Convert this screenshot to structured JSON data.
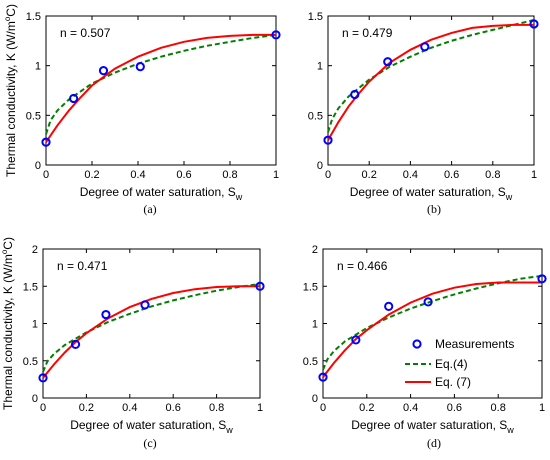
{
  "figure": {
    "ylabel_main": "Thermal conductivity, K (W/m",
    "ylabel_sup": "o",
    "ylabel_tail": "C)",
    "xlabel_main": "Degree of water saturation, S",
    "xlabel_sub": "w"
  },
  "legend": {
    "measurements": "Measurements",
    "eq4": "Eq.(4)",
    "eq7": "Eq. (7)"
  },
  "colors": {
    "measurements": "#0000ff",
    "eq4": "#008000",
    "eq7": "#ff0000"
  },
  "chart_data": [
    {
      "type": "line",
      "panel": "(a)",
      "annotation": "n = 0.507",
      "xlim": [
        0,
        1
      ],
      "ylim": [
        0,
        1.5
      ],
      "xticks": [
        0,
        0.2,
        0.4,
        0.6,
        0.8,
        1
      ],
      "yticks": [
        0,
        0.5,
        1,
        1.5
      ],
      "xtick_labels": [
        "0",
        "0.2",
        "0.4",
        "0.6",
        "0.8",
        "1"
      ],
      "ytick_labels": [
        "0",
        "0.5",
        "1",
        "1.5"
      ],
      "measurements": {
        "x": [
          0,
          0.12,
          0.25,
          0.41,
          1
        ],
        "y": [
          0.23,
          0.67,
          0.95,
          0.99,
          1.31
        ]
      },
      "eq4": {
        "x": [
          0,
          0.02,
          0.05,
          0.1,
          0.2,
          0.3,
          0.4,
          0.5,
          0.6,
          0.7,
          0.8,
          0.9,
          1
        ],
        "y": [
          0.31,
          0.45,
          0.55,
          0.66,
          0.82,
          0.93,
          1.02,
          1.09,
          1.15,
          1.2,
          1.24,
          1.28,
          1.31
        ]
      },
      "eq7": {
        "x": [
          0,
          0.05,
          0.1,
          0.15,
          0.2,
          0.3,
          0.4,
          0.5,
          0.6,
          0.7,
          0.8,
          0.9,
          1
        ],
        "y": [
          0.23,
          0.4,
          0.55,
          0.68,
          0.8,
          0.97,
          1.09,
          1.18,
          1.24,
          1.28,
          1.3,
          1.31,
          1.31
        ]
      }
    },
    {
      "type": "line",
      "panel": "(b)",
      "annotation": "n = 0.479",
      "xlim": [
        0,
        1
      ],
      "ylim": [
        0,
        1.5
      ],
      "xticks": [
        0,
        0.2,
        0.4,
        0.6,
        0.8,
        1
      ],
      "yticks": [
        0,
        0.5,
        1,
        1.5
      ],
      "xtick_labels": [
        "0",
        "0.2",
        "0.4",
        "0.6",
        "0.8",
        "1"
      ],
      "ytick_labels": [
        "0",
        "0.5",
        "1",
        "1.5"
      ],
      "measurements": {
        "x": [
          0,
          0.13,
          0.29,
          0.47,
          1
        ],
        "y": [
          0.25,
          0.71,
          1.04,
          1.19,
          1.42
        ]
      },
      "eq4": {
        "x": [
          0,
          0.02,
          0.05,
          0.1,
          0.2,
          0.3,
          0.4,
          0.5,
          0.6,
          0.7,
          0.8,
          0.9,
          1
        ],
        "y": [
          0.33,
          0.46,
          0.57,
          0.69,
          0.86,
          0.99,
          1.09,
          1.18,
          1.25,
          1.31,
          1.36,
          1.41,
          1.46
        ]
      },
      "eq7": {
        "x": [
          0,
          0.05,
          0.1,
          0.15,
          0.2,
          0.3,
          0.4,
          0.5,
          0.6,
          0.7,
          0.8,
          0.9,
          1
        ],
        "y": [
          0.25,
          0.43,
          0.59,
          0.72,
          0.84,
          1.03,
          1.16,
          1.26,
          1.33,
          1.38,
          1.4,
          1.41,
          1.41
        ]
      }
    },
    {
      "type": "line",
      "panel": "(c)",
      "annotation": "n = 0.471",
      "xlim": [
        0,
        1
      ],
      "ylim": [
        0,
        2
      ],
      "xticks": [
        0,
        0.2,
        0.4,
        0.6,
        0.8,
        1
      ],
      "yticks": [
        0,
        0.5,
        1,
        1.5,
        2
      ],
      "xtick_labels": [
        "0",
        "0.2",
        "0.4",
        "0.6",
        "0.8",
        "1"
      ],
      "ytick_labels": [
        "0",
        "0.5",
        "1",
        "1.5",
        "2"
      ],
      "measurements": {
        "x": [
          0,
          0.15,
          0.29,
          0.47,
          1
        ],
        "y": [
          0.27,
          0.72,
          1.12,
          1.25,
          1.5
        ]
      },
      "eq4": {
        "x": [
          0,
          0.02,
          0.05,
          0.1,
          0.2,
          0.3,
          0.4,
          0.5,
          0.6,
          0.7,
          0.8,
          0.9,
          1
        ],
        "y": [
          0.35,
          0.49,
          0.59,
          0.71,
          0.88,
          1.02,
          1.13,
          1.23,
          1.31,
          1.38,
          1.44,
          1.49,
          1.53
        ]
      },
      "eq7": {
        "x": [
          0,
          0.05,
          0.1,
          0.15,
          0.2,
          0.3,
          0.4,
          0.5,
          0.6,
          0.7,
          0.8,
          0.9,
          1
        ],
        "y": [
          0.27,
          0.45,
          0.61,
          0.75,
          0.87,
          1.07,
          1.22,
          1.33,
          1.41,
          1.46,
          1.49,
          1.5,
          1.5
        ]
      }
    },
    {
      "type": "line",
      "panel": "(d)",
      "annotation": "n = 0.466",
      "xlim": [
        0,
        1
      ],
      "ylim": [
        0,
        2
      ],
      "xticks": [
        0,
        0.2,
        0.4,
        0.6,
        0.8,
        1
      ],
      "yticks": [
        0,
        0.5,
        1,
        1.5,
        2
      ],
      "xtick_labels": [
        "0",
        "0.2",
        "0.4",
        "0.6",
        "0.8",
        "1"
      ],
      "ytick_labels": [
        "0",
        "0.5",
        "1",
        "1.5",
        "2"
      ],
      "legend_position": "bottom-right",
      "measurements": {
        "x": [
          0,
          0.15,
          0.3,
          0.48,
          1
        ],
        "y": [
          0.28,
          0.78,
          1.23,
          1.29,
          1.6
        ]
      },
      "eq4": {
        "x": [
          0,
          0.02,
          0.05,
          0.1,
          0.2,
          0.3,
          0.4,
          0.5,
          0.6,
          0.7,
          0.8,
          0.9,
          1
        ],
        "y": [
          0.38,
          0.52,
          0.63,
          0.76,
          0.94,
          1.08,
          1.2,
          1.3,
          1.39,
          1.47,
          1.54,
          1.6,
          1.64
        ]
      },
      "eq7": {
        "x": [
          0,
          0.05,
          0.1,
          0.15,
          0.2,
          0.3,
          0.4,
          0.5,
          0.6,
          0.7,
          0.8,
          0.9,
          1
        ],
        "y": [
          0.28,
          0.47,
          0.64,
          0.79,
          0.91,
          1.12,
          1.28,
          1.4,
          1.48,
          1.53,
          1.55,
          1.55,
          1.55
        ]
      }
    }
  ]
}
